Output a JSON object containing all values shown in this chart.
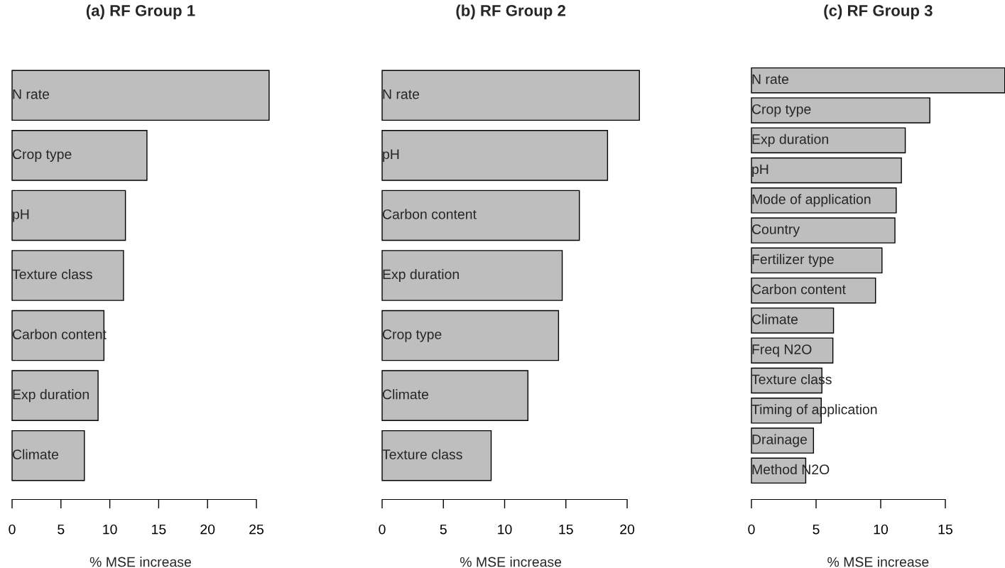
{
  "chart_data": [
    {
      "type": "bar",
      "orientation": "horizontal",
      "title": "(a) RF Group 1",
      "xlabel": "% MSE increase",
      "color": "#bebebe",
      "categories": [
        "N rate",
        "Crop type",
        "pH",
        "Texture class",
        "Carbon content",
        "Exp duration",
        "Climate"
      ],
      "values": [
        26.3,
        13.8,
        11.6,
        11.4,
        9.4,
        8.8,
        7.4
      ],
      "xlim": [
        0,
        26.3
      ],
      "xticks": [
        0,
        5,
        10,
        15,
        20,
        25
      ]
    },
    {
      "type": "bar",
      "orientation": "horizontal",
      "title": "(b) RF Group 2",
      "xlabel": "% MSE increase",
      "color": "#bebebe",
      "categories": [
        "N rate",
        "pH",
        "Carbon content",
        "Exp duration",
        "Crop type",
        "Climate",
        "Texture class"
      ],
      "values": [
        21.0,
        18.4,
        16.1,
        14.7,
        14.4,
        11.9,
        8.9
      ],
      "xlim": [
        0,
        21.0
      ],
      "xticks": [
        0,
        5,
        10,
        15,
        20
      ]
    },
    {
      "type": "bar",
      "orientation": "horizontal",
      "title": "(c) RF Group 3",
      "xlabel": "% MSE increase",
      "color": "#bebebe",
      "categories": [
        "N rate",
        "Crop type",
        "Exp duration",
        "pH",
        "Mode of application",
        "Country",
        "Fertilizer type",
        "Carbon content",
        "Climate",
        "Freq N2O",
        "Texture class",
        "Timing of application",
        "Drainage",
        "Method N2O"
      ],
      "values": [
        19.6,
        13.8,
        11.9,
        11.6,
        11.2,
        11.1,
        10.1,
        9.6,
        6.35,
        6.3,
        5.45,
        5.4,
        4.8,
        4.2
      ],
      "xlim": [
        0,
        19.6
      ],
      "xticks": [
        0,
        5,
        10,
        15
      ]
    }
  ]
}
